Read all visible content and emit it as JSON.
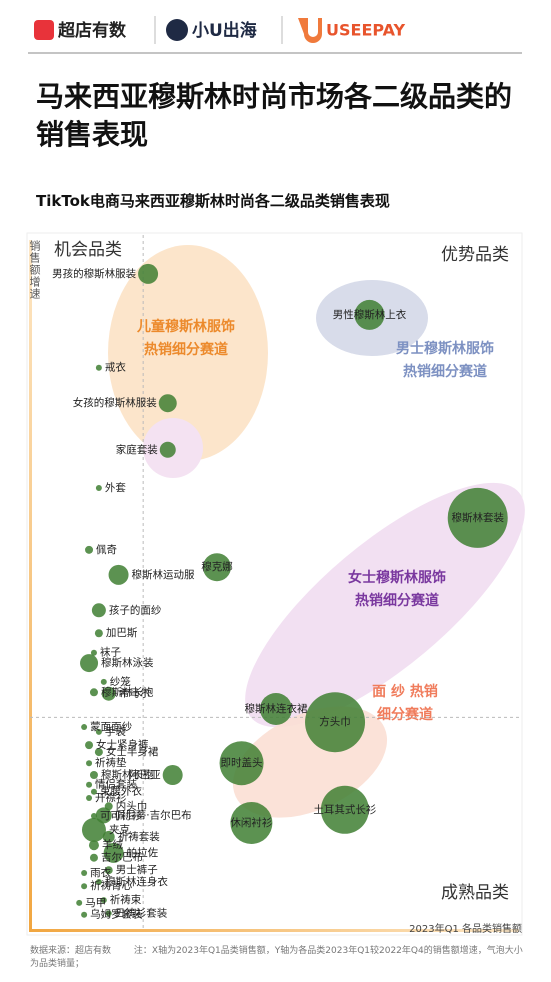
{
  "header": {
    "logos": [
      "超店有数",
      "小U出海",
      "USEEPAY"
    ]
  },
  "chart_data": {
    "type": "bubble",
    "title": "马来西亚穆斯林时尚市场各二级品类的销售表现",
    "subtitle": "TikTok电商马来西亚穆斯林时尚各二级品类销售表现",
    "x_label": "2023年Q1 各品类销售额",
    "y_label": "销售额增速",
    "quadrant_labels": [
      "机会品类",
      "优势品类",
      "成熟品类"
    ],
    "x_divider": 23,
    "y_divider": 30.6,
    "xlim": [
      0,
      100
    ],
    "ylim": [
      0,
      100
    ],
    "color": "#3f7f33",
    "categories": [
      "男孩的穆斯林服装",
      "男性穆斯林上衣",
      "戒衣",
      "女孩的穆斯林服装",
      "家庭套装",
      "外套",
      "穆斯林套装",
      "佩奇",
      "穆斯林运动服",
      "穆克娜",
      "孩子的面纱",
      "加巴斯",
      "袜子",
      "穆斯林泳装",
      "纱笼",
      "穆斯林长袍",
      "希马尔",
      "穆斯林连衣裙",
      "方头巾",
      "蒙面面纱",
      "手袋",
      "女士紧身裤",
      "女士半身裙",
      "祈祷垫",
      "即时盖头",
      "阿巴亚",
      "穆斯林长袍",
      "情侣套装",
      "束腰外衣",
      "开襟衫",
      "内头巾",
      "佩尼蒂·吉尔巴布",
      "土耳其式长衫",
      "可可衬衫",
      "休闲衬衫",
      "夹克",
      "祈祷套装",
      "羊绒",
      "帕拉佐",
      "吉尔巴布",
      "男士裤子",
      "雨衣",
      "穆斯林连身衣",
      "祈祷背心",
      "祈祷束",
      "马甲",
      "日祷衫套装",
      "乌姆罗套装"
    ],
    "x": [
      24,
      69,
      14,
      28,
      28,
      14,
      91,
      12,
      18,
      38,
      14,
      14,
      13,
      12,
      15,
      13,
      16,
      50,
      62,
      11,
      14,
      12,
      14,
      12,
      43,
      29,
      13,
      12,
      13,
      12,
      16,
      15,
      64,
      13,
      45,
      13,
      16,
      13,
      17,
      13,
      16,
      11,
      14,
      11,
      15,
      10,
      16,
      11
    ],
    "y": [
      94.4,
      88.5,
      80.9,
      75.8,
      69.1,
      63.6,
      59.3,
      54.7,
      51.1,
      52.2,
      46.0,
      42.7,
      39.9,
      38.4,
      35.7,
      34.2,
      34.0,
      31.8,
      29.9,
      29.2,
      28.5,
      26.6,
      25.6,
      24.0,
      24.0,
      22.3,
      22.3,
      20.9,
      19.9,
      19.0,
      17.8,
      16.5,
      17.3,
      16.4,
      15.4,
      14.4,
      13.4,
      12.2,
      11.1,
      10.4,
      8.6,
      8.2,
      6.9,
      6.3,
      4.3,
      3.9,
      2.4,
      2.2
    ],
    "sizes": [
      10,
      15,
      3,
      9,
      8,
      3,
      30,
      4,
      10,
      14,
      7,
      4,
      3,
      9,
      3,
      4,
      7,
      16,
      30,
      3,
      3,
      4,
      4,
      3,
      22,
      10,
      4,
      3,
      3,
      3,
      4,
      8,
      24,
      3,
      21,
      12,
      6,
      5,
      10,
      4,
      4,
      3,
      3,
      3,
      3,
      3,
      3,
      3
    ],
    "annotations": [
      {
        "lines": [
          "儿童穆斯林服饰",
          "热销细分赛道"
        ],
        "color": "#ec8a2c"
      },
      {
        "lines": [
          "男士穆斯林服饰",
          "热销细分赛道"
        ],
        "color": "#7d91c2"
      },
      {
        "lines": [
          "女士穆斯林服饰",
          "热销细分赛道"
        ],
        "color": "#7a389f"
      },
      {
        "lines": [
          "面 纱 热销",
          "细分赛道"
        ],
        "color": "#f07c5c"
      }
    ]
  },
  "footer": {
    "source": "数据来源：超店有数",
    "note": "注：X轴为2023年Q1品类销售额，Y轴为各品类2023年Q1较2022年Q4的销售额增速，气泡大小为品类销量；"
  }
}
